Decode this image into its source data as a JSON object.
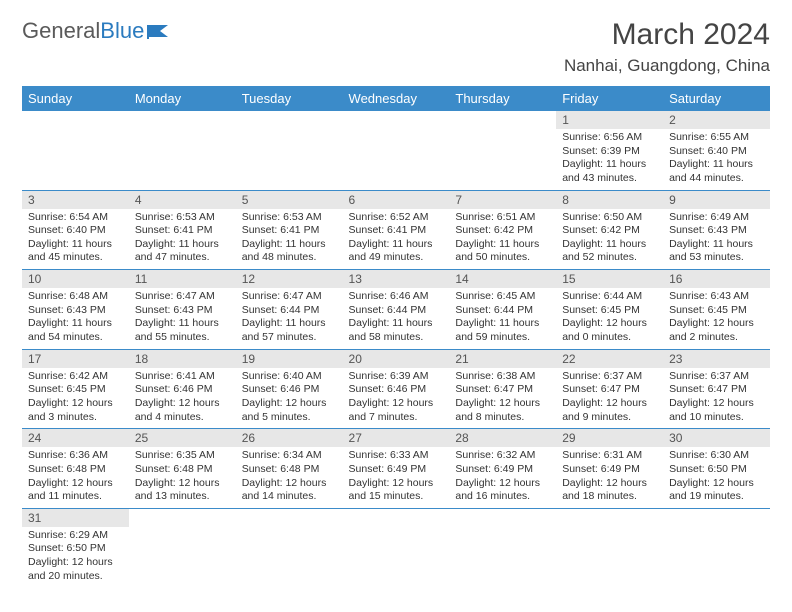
{
  "brand": {
    "part1": "General",
    "part2": "Blue"
  },
  "colors": {
    "header_bg": "#3b8bc9",
    "header_fg": "#ffffff",
    "daynum_bg": "#e7e7e7",
    "row_border": "#3b8bc9",
    "brand_gray": "#5a5a5a",
    "brand_blue": "#2b7bbf"
  },
  "month_title": "March 2024",
  "location": "Nanhai, Guangdong, China",
  "weekdays": [
    "Sunday",
    "Monday",
    "Tuesday",
    "Wednesday",
    "Thursday",
    "Friday",
    "Saturday"
  ],
  "first_weekday_index": 5,
  "days": [
    {
      "n": 1,
      "sunrise": "6:56 AM",
      "sunset": "6:39 PM",
      "daylight": "11 hours and 43 minutes."
    },
    {
      "n": 2,
      "sunrise": "6:55 AM",
      "sunset": "6:40 PM",
      "daylight": "11 hours and 44 minutes."
    },
    {
      "n": 3,
      "sunrise": "6:54 AM",
      "sunset": "6:40 PM",
      "daylight": "11 hours and 45 minutes."
    },
    {
      "n": 4,
      "sunrise": "6:53 AM",
      "sunset": "6:41 PM",
      "daylight": "11 hours and 47 minutes."
    },
    {
      "n": 5,
      "sunrise": "6:53 AM",
      "sunset": "6:41 PM",
      "daylight": "11 hours and 48 minutes."
    },
    {
      "n": 6,
      "sunrise": "6:52 AM",
      "sunset": "6:41 PM",
      "daylight": "11 hours and 49 minutes."
    },
    {
      "n": 7,
      "sunrise": "6:51 AM",
      "sunset": "6:42 PM",
      "daylight": "11 hours and 50 minutes."
    },
    {
      "n": 8,
      "sunrise": "6:50 AM",
      "sunset": "6:42 PM",
      "daylight": "11 hours and 52 minutes."
    },
    {
      "n": 9,
      "sunrise": "6:49 AM",
      "sunset": "6:43 PM",
      "daylight": "11 hours and 53 minutes."
    },
    {
      "n": 10,
      "sunrise": "6:48 AM",
      "sunset": "6:43 PM",
      "daylight": "11 hours and 54 minutes."
    },
    {
      "n": 11,
      "sunrise": "6:47 AM",
      "sunset": "6:43 PM",
      "daylight": "11 hours and 55 minutes."
    },
    {
      "n": 12,
      "sunrise": "6:47 AM",
      "sunset": "6:44 PM",
      "daylight": "11 hours and 57 minutes."
    },
    {
      "n": 13,
      "sunrise": "6:46 AM",
      "sunset": "6:44 PM",
      "daylight": "11 hours and 58 minutes."
    },
    {
      "n": 14,
      "sunrise": "6:45 AM",
      "sunset": "6:44 PM",
      "daylight": "11 hours and 59 minutes."
    },
    {
      "n": 15,
      "sunrise": "6:44 AM",
      "sunset": "6:45 PM",
      "daylight": "12 hours and 0 minutes."
    },
    {
      "n": 16,
      "sunrise": "6:43 AM",
      "sunset": "6:45 PM",
      "daylight": "12 hours and 2 minutes."
    },
    {
      "n": 17,
      "sunrise": "6:42 AM",
      "sunset": "6:45 PM",
      "daylight": "12 hours and 3 minutes."
    },
    {
      "n": 18,
      "sunrise": "6:41 AM",
      "sunset": "6:46 PM",
      "daylight": "12 hours and 4 minutes."
    },
    {
      "n": 19,
      "sunrise": "6:40 AM",
      "sunset": "6:46 PM",
      "daylight": "12 hours and 5 minutes."
    },
    {
      "n": 20,
      "sunrise": "6:39 AM",
      "sunset": "6:46 PM",
      "daylight": "12 hours and 7 minutes."
    },
    {
      "n": 21,
      "sunrise": "6:38 AM",
      "sunset": "6:47 PM",
      "daylight": "12 hours and 8 minutes."
    },
    {
      "n": 22,
      "sunrise": "6:37 AM",
      "sunset": "6:47 PM",
      "daylight": "12 hours and 9 minutes."
    },
    {
      "n": 23,
      "sunrise": "6:37 AM",
      "sunset": "6:47 PM",
      "daylight": "12 hours and 10 minutes."
    },
    {
      "n": 24,
      "sunrise": "6:36 AM",
      "sunset": "6:48 PM",
      "daylight": "12 hours and 11 minutes."
    },
    {
      "n": 25,
      "sunrise": "6:35 AM",
      "sunset": "6:48 PM",
      "daylight": "12 hours and 13 minutes."
    },
    {
      "n": 26,
      "sunrise": "6:34 AM",
      "sunset": "6:48 PM",
      "daylight": "12 hours and 14 minutes."
    },
    {
      "n": 27,
      "sunrise": "6:33 AM",
      "sunset": "6:49 PM",
      "daylight": "12 hours and 15 minutes."
    },
    {
      "n": 28,
      "sunrise": "6:32 AM",
      "sunset": "6:49 PM",
      "daylight": "12 hours and 16 minutes."
    },
    {
      "n": 29,
      "sunrise": "6:31 AM",
      "sunset": "6:49 PM",
      "daylight": "12 hours and 18 minutes."
    },
    {
      "n": 30,
      "sunrise": "6:30 AM",
      "sunset": "6:50 PM",
      "daylight": "12 hours and 19 minutes."
    },
    {
      "n": 31,
      "sunrise": "6:29 AM",
      "sunset": "6:50 PM",
      "daylight": "12 hours and 20 minutes."
    }
  ],
  "labels": {
    "sunrise": "Sunrise:",
    "sunset": "Sunset:",
    "daylight": "Daylight:"
  }
}
